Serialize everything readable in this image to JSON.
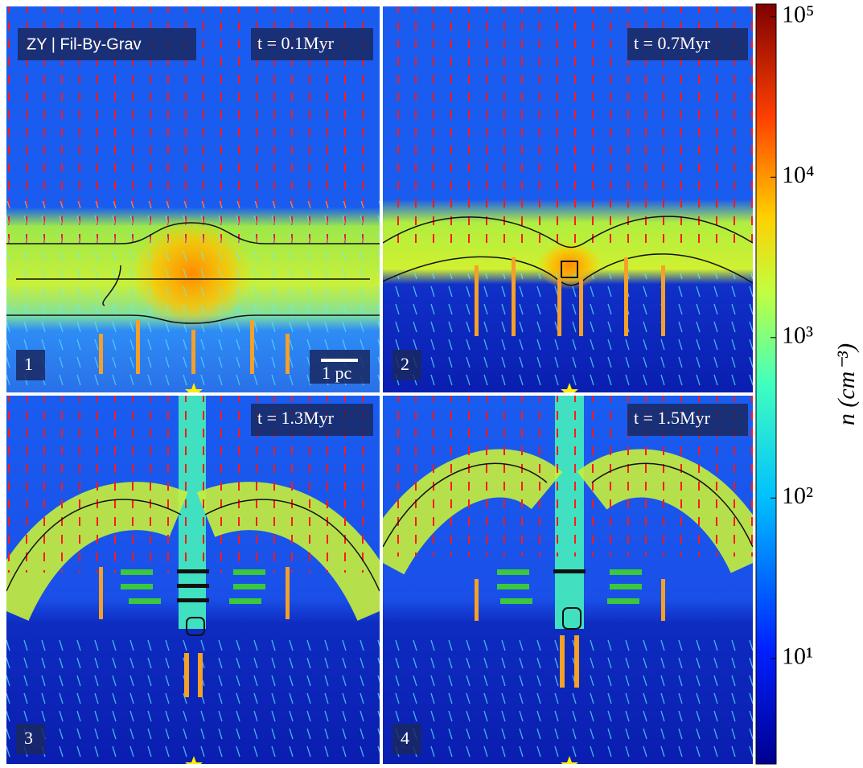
{
  "figure": {
    "panels": [
      {
        "number": "1",
        "time": "t = 0.1Myr",
        "title": "ZY | Fil-By-Grav",
        "scale_bar": "1 pc"
      },
      {
        "number": "2",
        "time": "t = 0.7Myr"
      },
      {
        "number": "3",
        "time": "t = 1.3Myr"
      },
      {
        "number": "4",
        "time": "t = 1.5Myr"
      }
    ],
    "colorbar": {
      "label": "n (cm⁻³)",
      "scale": "log",
      "range": [
        2.2,
        120000
      ],
      "ticks": [
        {
          "value": 10,
          "label": "10¹"
        },
        {
          "value": 100,
          "label": "10²"
        },
        {
          "value": 1000,
          "label": "10³"
        },
        {
          "value": 10000,
          "label": "10⁴"
        },
        {
          "value": 100000,
          "label": "10⁵"
        }
      ]
    }
  }
}
